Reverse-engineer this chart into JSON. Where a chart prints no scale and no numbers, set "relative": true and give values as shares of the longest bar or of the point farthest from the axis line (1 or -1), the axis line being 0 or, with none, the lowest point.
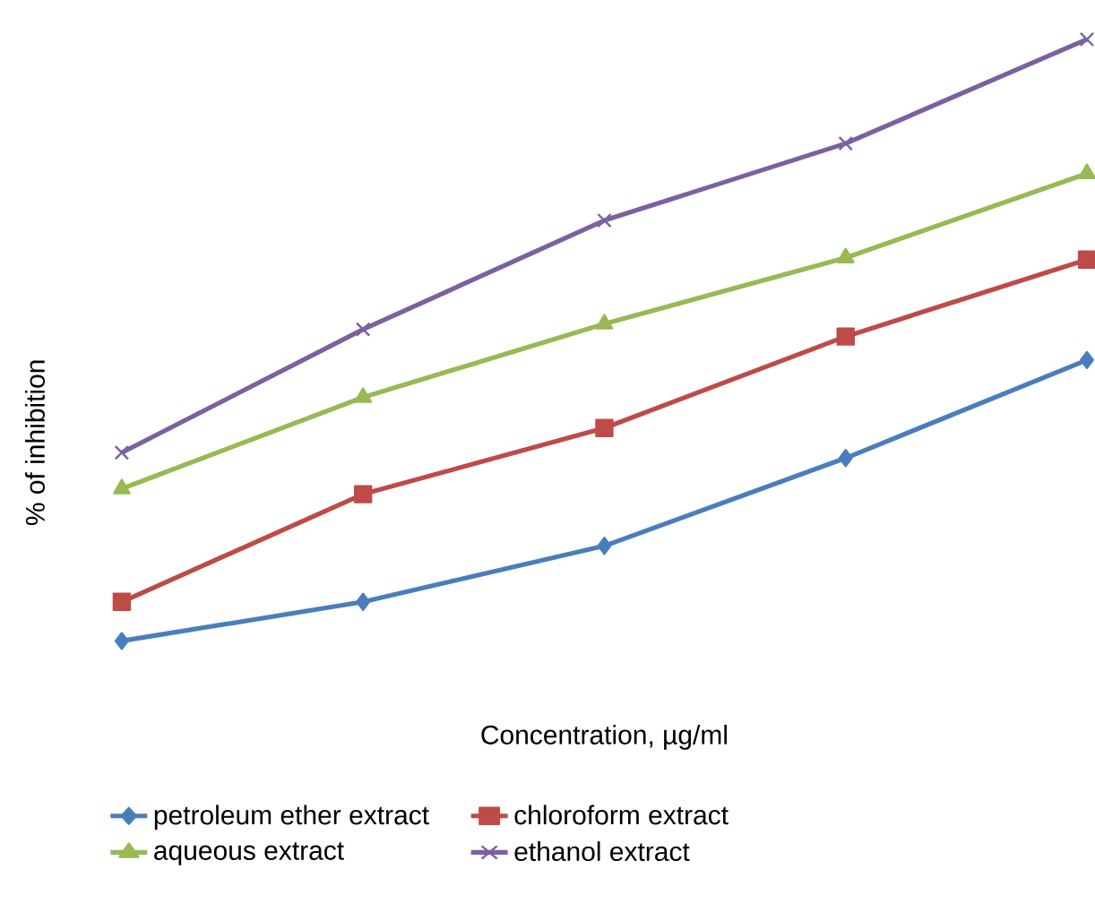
{
  "chart_data": {
    "type": "line",
    "relative": true,
    "xlabel": "Concentration, µg/ml",
    "ylabel": "% of inhibition",
    "categories": [
      null,
      null,
      null,
      null,
      null
    ],
    "legend": "bottom",
    "series": [
      {
        "name": "petroleum ether extract",
        "color": "#4a7ebb",
        "marker": "diamond",
        "values": [
          0,
          0.065,
          0.158,
          0.304,
          0.467
        ]
      },
      {
        "name": "chloroform extract",
        "color": "#be4b48",
        "marker": "square",
        "values": [
          0.065,
          0.244,
          0.354,
          0.506,
          0.634
        ]
      },
      {
        "name": "aqueous extract",
        "color": "#98b954",
        "marker": "triangle",
        "values": [
          0.253,
          0.405,
          0.527,
          0.637,
          0.777
        ]
      },
      {
        "name": "ethanol extract",
        "color": "#7d60a0",
        "marker": "cross",
        "values": [
          0.313,
          0.518,
          0.699,
          0.827,
          1
        ]
      }
    ]
  }
}
